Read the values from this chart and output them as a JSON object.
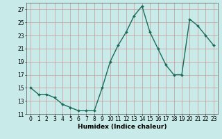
{
  "x": [
    0,
    1,
    2,
    3,
    4,
    5,
    6,
    7,
    8,
    9,
    10,
    11,
    12,
    13,
    14,
    15,
    16,
    17,
    18,
    19,
    20,
    21,
    22,
    23
  ],
  "y": [
    15,
    14,
    14,
    13.5,
    12.5,
    12,
    11.5,
    11.5,
    11.5,
    15,
    19,
    21.5,
    23.5,
    26,
    27.5,
    23.5,
    21,
    18.5,
    17,
    17,
    25.5,
    24.5,
    23,
    21.5
  ],
  "line_color": "#1a6b5a",
  "marker_color": "#1a6b5a",
  "bg_color": "#c8eae8",
  "grid_color": "#cc9999",
  "xlabel": "Humidex (Indice chaleur)",
  "ylim": [
    11,
    28
  ],
  "xlim": [
    -0.5,
    23.5
  ],
  "yticks": [
    11,
    13,
    15,
    17,
    19,
    21,
    23,
    25,
    27
  ],
  "xticks": [
    0,
    1,
    2,
    3,
    4,
    5,
    6,
    7,
    8,
    9,
    10,
    11,
    12,
    13,
    14,
    15,
    16,
    17,
    18,
    19,
    20,
    21,
    22,
    23
  ],
  "xtick_labels": [
    "0",
    "1",
    "2",
    "3",
    "4",
    "5",
    "6",
    "7",
    "8",
    "9",
    "10",
    "11",
    "12",
    "13",
    "14",
    "15",
    "16",
    "17",
    "18",
    "19",
    "20",
    "21",
    "22",
    "23"
  ],
  "ytick_labels": [
    "11",
    "13",
    "15",
    "17",
    "19",
    "21",
    "23",
    "25",
    "27"
  ],
  "xlabel_fontsize": 6.5,
  "tick_fontsize": 5.5,
  "linewidth": 1.0,
  "markersize": 2.0
}
